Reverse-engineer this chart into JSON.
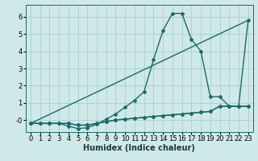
{
  "xlabel": "Humidex (Indice chaleur)",
  "bg_color": "#cfe8e8",
  "grid_color": "#aacfcf",
  "line_color": "#1a6b6a",
  "xlim": [
    -0.5,
    23.5
  ],
  "ylim": [
    -0.7,
    6.7
  ],
  "xticks": [
    0,
    1,
    2,
    3,
    4,
    5,
    6,
    7,
    8,
    9,
    10,
    11,
    12,
    13,
    14,
    15,
    16,
    17,
    18,
    19,
    20,
    21,
    22,
    23
  ],
  "yticks": [
    0,
    1,
    2,
    3,
    4,
    5,
    6
  ],
  "ytick_labels": [
    "-0",
    "1",
    "2",
    "3",
    "4",
    "5",
    "6"
  ],
  "series": [
    {
      "x": [
        0,
        1,
        2,
        3,
        4,
        5,
        6,
        7,
        8,
        9,
        10,
        11,
        12,
        13,
        14,
        15,
        16,
        17,
        18,
        19,
        20,
        21,
        22,
        23
      ],
      "y": [
        -0.2,
        -0.2,
        -0.2,
        -0.2,
        -0.2,
        -0.3,
        -0.3,
        -0.2,
        -0.1,
        0.0,
        0.05,
        0.1,
        0.15,
        0.2,
        0.25,
        0.3,
        0.35,
        0.4,
        0.45,
        0.5,
        0.8,
        0.8,
        0.8,
        0.8
      ],
      "has_marker": true
    },
    {
      "x": [
        0,
        1,
        2,
        3,
        4,
        5,
        6,
        7,
        8,
        9,
        10,
        11,
        12,
        13,
        14,
        15,
        16,
        17,
        18,
        19,
        20,
        21,
        22,
        23
      ],
      "y": [
        -0.2,
        -0.2,
        -0.2,
        -0.2,
        -0.35,
        -0.5,
        -0.45,
        -0.25,
        0.05,
        0.35,
        0.75,
        1.15,
        1.65,
        3.5,
        5.2,
        6.2,
        6.2,
        4.7,
        4.0,
        1.35,
        1.35,
        0.8,
        0.8,
        0.8
      ],
      "has_marker": true
    },
    {
      "x": [
        0,
        23
      ],
      "y": [
        -0.2,
        5.8
      ],
      "has_marker": false
    },
    {
      "x": [
        0,
        1,
        2,
        3,
        4,
        5,
        6,
        7,
        8,
        9,
        10,
        11,
        12,
        13,
        14,
        15,
        16,
        17,
        18,
        19,
        20,
        21,
        22,
        23
      ],
      "y": [
        -0.2,
        -0.2,
        -0.2,
        -0.2,
        -0.2,
        -0.3,
        -0.3,
        -0.2,
        -0.1,
        0.0,
        0.05,
        0.1,
        0.15,
        0.2,
        0.25,
        0.3,
        0.35,
        0.4,
        0.45,
        0.5,
        0.8,
        0.8,
        0.8,
        5.8
      ],
      "has_marker": true
    }
  ],
  "marker": "D",
  "marker_size": 2.0,
  "line_width": 1.0,
  "tick_font_size": 6,
  "xlabel_font_size": 7
}
